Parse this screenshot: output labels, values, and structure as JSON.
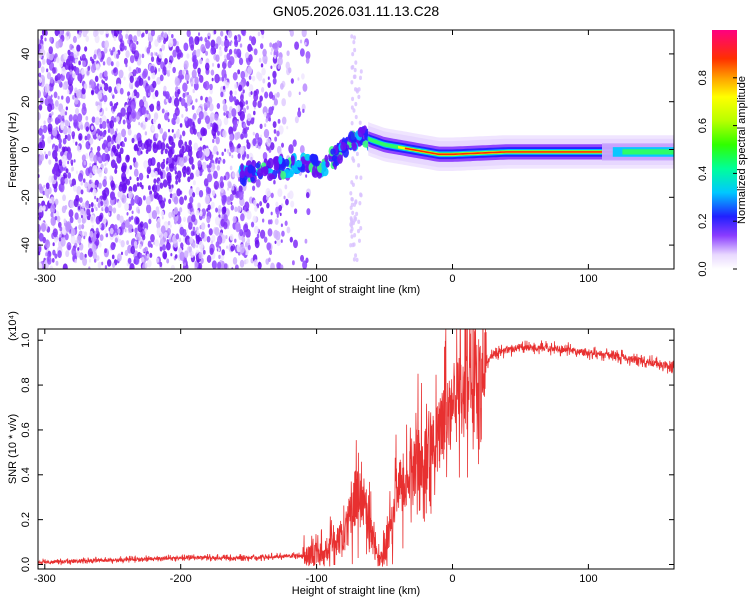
{
  "title": "GN05.2026.031.11.13.C28",
  "chart_data": [
    {
      "type": "heatmap",
      "xlabel": "Height of straight line (km)",
      "ylabel": "Frequency (Hz)",
      "xlim": [
        -305,
        163
      ],
      "ylim": [
        -50,
        50
      ],
      "xticks": [
        -300,
        -200,
        -100,
        0,
        100
      ],
      "yticks": [
        -40,
        -20,
        0,
        20,
        40
      ],
      "colorbar": {
        "label": "Normalized spectral amplitude",
        "range": [
          0,
          1
        ],
        "ticks": [
          "0.0",
          "0.2",
          "0.4",
          "0.6",
          "0.8"
        ],
        "tick_values": [
          0.0,
          0.2,
          0.4,
          0.6,
          0.8
        ]
      },
      "ridge": {
        "x": [
          -155,
          -130,
          -110,
          -95,
          -80,
          -68,
          -60,
          -50,
          -40,
          -30,
          -20,
          -10,
          0,
          40,
          100,
          163
        ],
        "y": [
          -10,
          -8,
          -6,
          -7,
          0,
          6,
          4,
          2,
          1,
          0,
          -1,
          -2,
          -2,
          -1,
          -1,
          -1
        ]
      }
    },
    {
      "type": "line",
      "xlabel": "Height of straight line (km)",
      "ylabel": "SNR (10 * v/v)",
      "y_multiplier": "(x10⁴)",
      "xlim": [
        -305,
        163
      ],
      "ylim": [
        -0.02,
        1.05
      ],
      "xticks": [
        -300,
        -200,
        -100,
        0,
        100
      ],
      "yticks": [
        "0.0",
        "0.2",
        "0.4",
        "0.6",
        "0.8",
        "1.0"
      ],
      "ytick_values": [
        0.0,
        0.2,
        0.4,
        0.6,
        0.8,
        1.0
      ],
      "color": "#e83030",
      "envelope": {
        "x": [
          -305,
          -250,
          -200,
          -150,
          -110,
          -95,
          -80,
          -72,
          -65,
          -55,
          -50,
          -45,
          -40,
          -30,
          -20,
          -10,
          0,
          10,
          20,
          30,
          50,
          80,
          120,
          163
        ],
        "y": [
          0.01,
          0.02,
          0.03,
          0.03,
          0.04,
          0.06,
          0.12,
          0.3,
          0.28,
          0.02,
          0.05,
          0.2,
          0.34,
          0.42,
          0.5,
          0.58,
          0.7,
          0.78,
          0.85,
          0.94,
          0.97,
          0.96,
          0.93,
          0.88
        ]
      }
    }
  ]
}
